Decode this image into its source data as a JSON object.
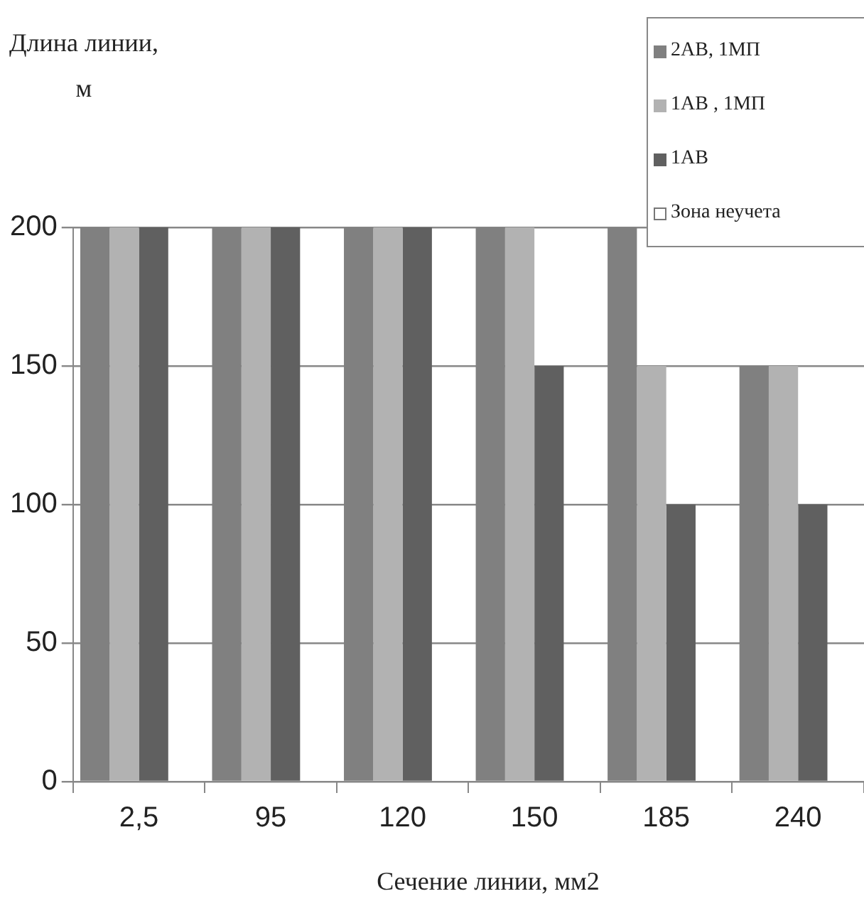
{
  "chart_data": {
    "type": "bar",
    "xlabel": "Сечение линии, мм2",
    "ylabel": "Длина линии, м",
    "categories": [
      "2,5",
      "95",
      "120",
      "150",
      "185",
      "240"
    ],
    "series": [
      {
        "name": "2АВ, 1МП",
        "color": "#808080",
        "values": [
          200,
          200,
          200,
          200,
          200,
          150
        ]
      },
      {
        "name": "1АВ , 1МП",
        "color": "#b2b2b2",
        "values": [
          200,
          200,
          200,
          200,
          150,
          150
        ]
      },
      {
        "name": "1АВ",
        "color": "#606060",
        "values": [
          200,
          200,
          200,
          150,
          100,
          100
        ]
      },
      {
        "name": "Зона неучета",
        "color": "#ffffff",
        "values": [
          null,
          null,
          null,
          null,
          null,
          null
        ]
      }
    ],
    "ylim": [
      0,
      200
    ],
    "yticks": [
      0,
      50,
      100,
      150,
      200
    ],
    "grid": "y",
    "legend": "top right"
  }
}
